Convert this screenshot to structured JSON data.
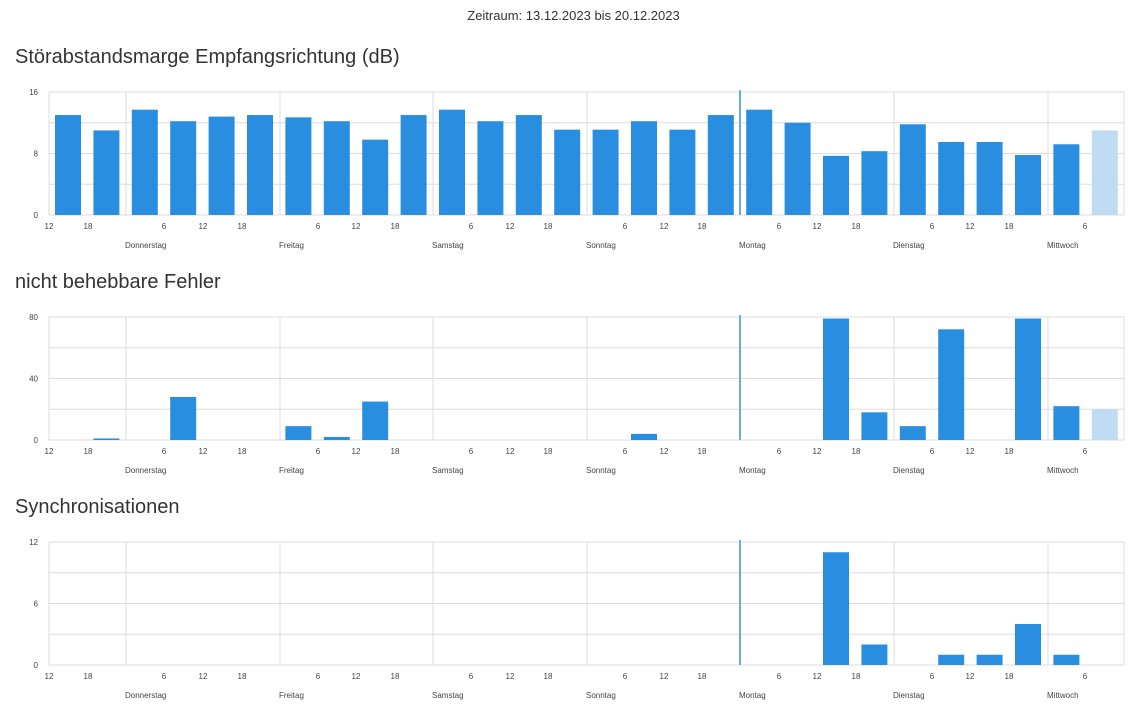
{
  "header": {
    "period_text": "Zeitraum: 13.12.2023 bis 20.12.2023"
  },
  "colors": {
    "bar": "#2a8ee0",
    "bar_current": "#bfdcf3",
    "grid": "#dddddd",
    "now_line": "#6aaed6"
  },
  "axis": {
    "hour_ticks": [
      "12",
      "18",
      "6",
      "12",
      "18",
      "6",
      "12",
      "18",
      "6",
      "12",
      "18",
      "6",
      "12",
      "18",
      "6",
      "12",
      "18",
      "6",
      "12",
      "18",
      "6"
    ],
    "days": [
      "Donnerstag",
      "Freitag",
      "Samstag",
      "Sonntag",
      "Montag",
      "Dienstag",
      "Mittwoch"
    ]
  },
  "chart_data": [
    {
      "type": "bar",
      "title": "Störabstandsmarge Empfangsrichtung (dB)",
      "ylim": [
        0,
        16
      ],
      "yticks": [
        "0",
        "8",
        "16"
      ],
      "values": [
        13,
        11,
        13.7,
        12.2,
        12.8,
        13,
        12.7,
        12.2,
        9.8,
        13,
        13.7,
        12.2,
        13,
        11.1,
        11.1,
        12.2,
        11.1,
        13,
        13.7,
        12,
        7.7,
        8.3,
        11.8,
        9.5,
        9.5,
        7.8,
        9.2,
        11
      ],
      "current_index": 27
    },
    {
      "type": "bar",
      "title": "nicht behebbare Fehler",
      "ylim": [
        0,
        80
      ],
      "yticks": [
        "0",
        "40",
        "80"
      ],
      "values": [
        0,
        1,
        0,
        28,
        0,
        0,
        9,
        2,
        25,
        0,
        0,
        0,
        0,
        0,
        0,
        4,
        0,
        0,
        0,
        0,
        79,
        18,
        9,
        72,
        0,
        79,
        22,
        20
      ],
      "current_index": 27
    },
    {
      "type": "bar",
      "title": "Synchronisationen",
      "ylim": [
        0,
        12
      ],
      "yticks": [
        "0",
        "6",
        "12"
      ],
      "values": [
        0,
        0,
        0,
        0,
        0,
        0,
        0,
        0,
        0,
        0,
        0,
        0,
        0,
        0,
        0,
        0,
        0,
        0,
        0,
        0,
        11,
        2,
        0,
        1,
        1,
        4,
        1,
        0
      ],
      "current_index": 27
    }
  ]
}
